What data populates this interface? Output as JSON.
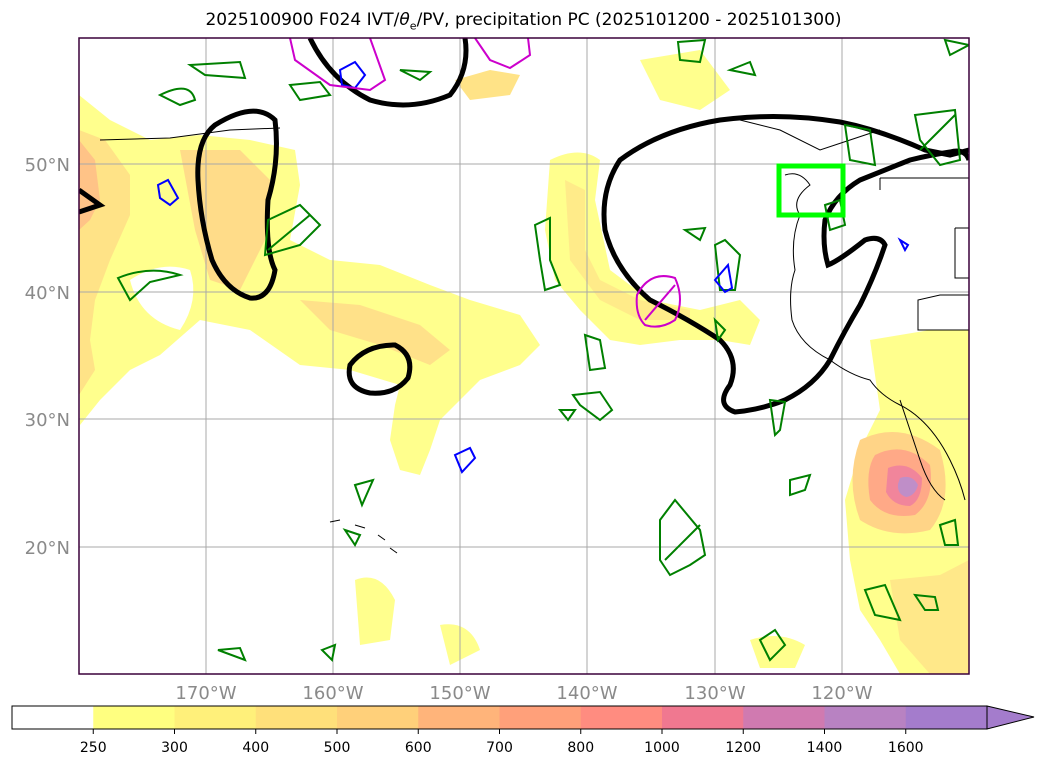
{
  "title": {
    "prefix": "2025100900 F024 IVT/",
    "theta": "θ",
    "theta_sub": "e",
    "suffix": "/PV, precipitation PC (2025101200 - 2025101300)"
  },
  "map": {
    "lat_labels": [
      "50°N",
      "40°N",
      "30°N",
      "20°N"
    ],
    "lon_labels": [
      "170°W",
      "160°W",
      "150°W",
      "140°W",
      "130°W",
      "120°W"
    ],
    "highlight_box_color": "#00ff00",
    "contour_colors": {
      "pc_line": "#000000",
      "theta_e": "#008000",
      "pv_blue": "#0000ff",
      "pv_magenta": "#cc00cc"
    }
  },
  "colorbar": {
    "ticks": [
      "250",
      "300",
      "400",
      "500",
      "600",
      "700",
      "800",
      "1000",
      "1200",
      "1400",
      "1600"
    ],
    "colors": [
      "#ffffff",
      "#ffff80",
      "#fff07a",
      "#ffe07a",
      "#ffd07a",
      "#ffb47a",
      "#ffa07a",
      "#ff8c80",
      "#f07890",
      "#d07ab0",
      "#b882c2",
      "#a47ccc"
    ]
  }
}
